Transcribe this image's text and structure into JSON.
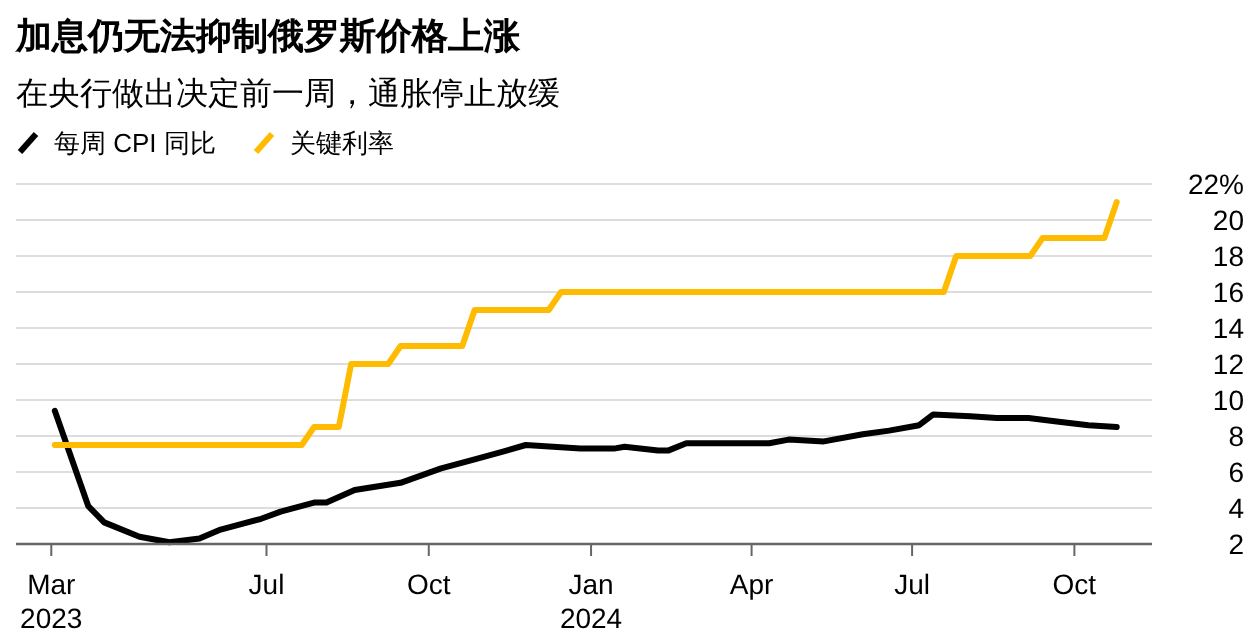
{
  "chart_data": {
    "type": "line",
    "title": "加息仍无法抑制俄罗斯价格上涨",
    "subtitle": "在央行做出决定前一周，通胀停止放缓",
    "xlim": [
      "2023-02-09",
      "2024-11-14"
    ],
    "xticks": [
      {
        "value": "2023-03-01",
        "label": "Mar\n2023"
      },
      {
        "value": "2023-07-01",
        "label": "Jul"
      },
      {
        "value": "2023-10-01",
        "label": "Oct"
      },
      {
        "value": "2024-01-01",
        "label": "Jan\n2024"
      },
      {
        "value": "2024-04-01",
        "label": "Apr"
      },
      {
        "value": "2024-07-01",
        "label": "Jul"
      },
      {
        "value": "2024-10-01",
        "label": "Oct"
      }
    ],
    "ylim": [
      2,
      22
    ],
    "yticks": [
      2,
      4,
      6,
      8,
      10,
      12,
      14,
      16,
      18,
      {
        "value": 20,
        "label": "20"
      },
      {
        "value": 22,
        "label": "22%"
      }
    ],
    "grid": "y",
    "legend": "top left",
    "marker": "none",
    "line_style": "solid",
    "series": [
      {
        "name": "每周 CPI 同比",
        "color": "#000000",
        "x": [
          "2023-03-03",
          "2023-03-22",
          "2023-03-31",
          "2023-04-20",
          "2023-05-07",
          "2023-05-24",
          "2023-06-05",
          "2023-06-28",
          "2023-07-09",
          "2023-07-28",
          "2023-08-04",
          "2023-08-20",
          "2023-09-15",
          "2023-10-08",
          "2023-10-27",
          "2023-11-11",
          "2023-11-25",
          "2023-12-26",
          "2024-01-14",
          "2024-01-20",
          "2024-02-08",
          "2024-02-14",
          "2024-02-24",
          "2024-04-11",
          "2024-04-22",
          "2024-05-12",
          "2024-06-03",
          "2024-06-18",
          "2024-07-05",
          "2024-07-13",
          "2024-08-03",
          "2024-08-18",
          "2024-09-05",
          "2024-09-21",
          "2024-10-09",
          "2024-10-25"
        ],
        "values": [
          9.4,
          4.1,
          3.2,
          2.4,
          2.1,
          2.3,
          2.8,
          3.4,
          3.8,
          4.3,
          4.3,
          5.0,
          5.4,
          6.2,
          6.7,
          7.1,
          7.5,
          7.3,
          7.3,
          7.4,
          7.2,
          7.2,
          7.6,
          7.6,
          7.8,
          7.7,
          8.1,
          8.3,
          8.6,
          9.2,
          9.1,
          9.0,
          9.0,
          8.8,
          8.6,
          8.5
        ]
      },
      {
        "name": "关键利率",
        "color": "#ffbb00",
        "x": [
          "2023-03-03",
          "2023-07-21",
          "2023-07-28",
          "2023-08-11",
          "2023-08-18",
          "2023-09-08",
          "2023-09-15",
          "2023-10-20",
          "2023-10-27",
          "2023-12-08",
          "2023-12-15",
          "2024-07-19",
          "2024-07-26",
          "2024-09-06",
          "2024-09-13",
          "2024-10-18",
          "2024-10-25"
        ],
        "values": [
          7.5,
          7.5,
          8.5,
          8.5,
          12,
          12,
          13,
          13,
          15,
          15,
          16,
          16,
          18,
          18,
          19,
          19,
          21
        ]
      }
    ]
  }
}
